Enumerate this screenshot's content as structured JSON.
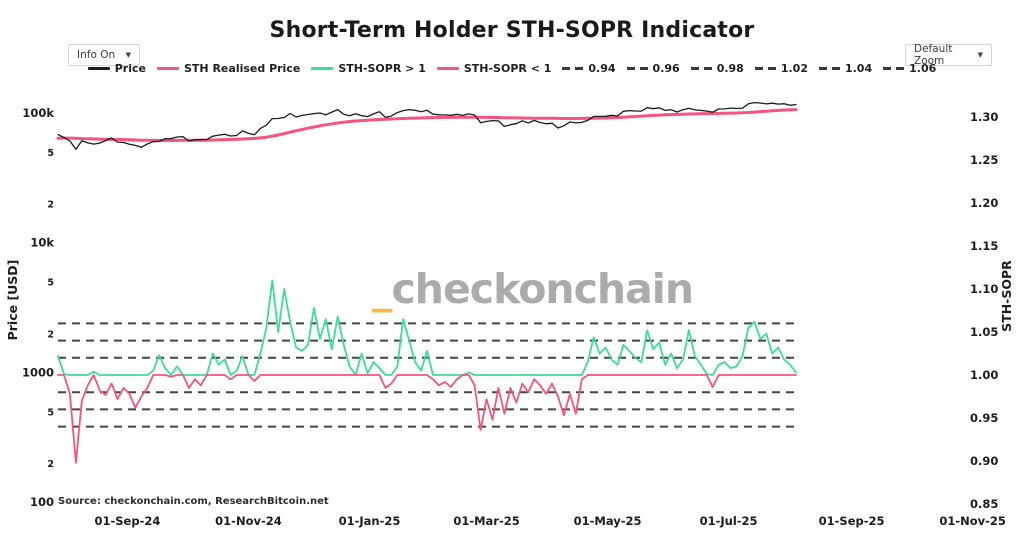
{
  "header": {
    "title": "Short-Term Holder STH-SOPR Indicator",
    "info_dropdown": {
      "label": "Info On",
      "caret": "▼"
    },
    "zoom_dropdown": {
      "label": "Default Zoom",
      "caret": "▼"
    }
  },
  "legend": {
    "items": [
      {
        "label": "Price",
        "type": "line",
        "color": "#1c1c1c"
      },
      {
        "label": "STH Realised Price",
        "type": "line",
        "color": "#f4547e"
      },
      {
        "label": "STH-SOPR > 1",
        "type": "line",
        "color": "#3ddc97"
      },
      {
        "label": "STH-SOPR < 1",
        "type": "line",
        "color": "#f4547e"
      },
      {
        "label": "0.94",
        "type": "dash",
        "color": "#3a3a3a"
      },
      {
        "label": "0.96",
        "type": "dash",
        "color": "#3a3a3a"
      },
      {
        "label": "0.98",
        "type": "dash",
        "color": "#3a3a3a"
      },
      {
        "label": "1.02",
        "type": "dash",
        "color": "#3a3a3a"
      },
      {
        "label": "1.04",
        "type": "dash",
        "color": "#3a3a3a"
      },
      {
        "label": "1.06",
        "type": "dash",
        "color": "#3a3a3a"
      }
    ]
  },
  "axes": {
    "y_left": {
      "title": "Price [USD]",
      "ticks": [
        {
          "v": 100000,
          "label": "100k",
          "minor": false
        },
        {
          "v": 50000,
          "label": "5",
          "minor": true
        },
        {
          "v": 20000,
          "label": "2",
          "minor": true
        },
        {
          "v": 10000,
          "label": "10k",
          "minor": false
        },
        {
          "v": 5000,
          "label": "5",
          "minor": true
        },
        {
          "v": 2000,
          "label": "2",
          "minor": true
        },
        {
          "v": 1000,
          "label": "1000",
          "minor": false
        },
        {
          "v": 500,
          "label": "5",
          "minor": true
        },
        {
          "v": 200,
          "label": "2",
          "minor": true
        },
        {
          "v": 100,
          "label": "100",
          "minor": false
        }
      ]
    },
    "y_right": {
      "title": "STH-SOPR",
      "ticks": [
        {
          "v": 1.3,
          "label": "1.30"
        },
        {
          "v": 1.25,
          "label": "1.25"
        },
        {
          "v": 1.2,
          "label": "1.20"
        },
        {
          "v": 1.15,
          "label": "1.15"
        },
        {
          "v": 1.1,
          "label": "1.10"
        },
        {
          "v": 1.05,
          "label": "1.05"
        },
        {
          "v": 1.0,
          "label": "1.00"
        },
        {
          "v": 0.95,
          "label": "0.95"
        },
        {
          "v": 0.9,
          "label": "0.90"
        },
        {
          "v": 0.85,
          "label": "0.85"
        }
      ]
    },
    "x": {
      "ticks": [
        "01-Sep-24",
        "01-Nov-24",
        "01-Jan-25",
        "01-Mar-25",
        "01-May-25",
        "01-Jul-25",
        "01-Sep-25",
        "01-Nov-25"
      ]
    }
  },
  "watermark": {
    "underscore": "_",
    "text": "checkonchain",
    "underscore_color": "#fcb949",
    "text_color": "#ababab"
  },
  "source": "Source: checkonchain.com, ResearchBitcoin.net",
  "chart_data": {
    "type": "line",
    "title": "Short-Term Holder STH-SOPR Indicator",
    "start_date": "2024-07-28",
    "step_days": 3,
    "y_left": {
      "label": "Price [USD]",
      "scale": "log",
      "range": [
        100,
        130000
      ]
    },
    "y_right": {
      "label": "STH-SOPR",
      "scale": "linear",
      "range": [
        0.85,
        1.3
      ]
    },
    "x_range": [
      "2024-07-28",
      "2025-11-01"
    ],
    "sopr_gridlines": [
      0.94,
      0.96,
      0.98,
      1.02,
      1.04,
      1.06
    ],
    "grid_color": "#454545",
    "series": [
      {
        "name": "Price",
        "axis": "left",
        "color": "#1c1c1c",
        "values_usd": [
          68000,
          64600,
          60700,
          52500,
          60900,
          58700,
          57500,
          58500,
          61200,
          64000,
          59500,
          59100,
          57400,
          56200,
          54300,
          57600,
          60000,
          60300,
          63200,
          63400,
          65200,
          65600,
          60600,
          62100,
          62200,
          62500,
          66100,
          67400,
          68400,
          66400,
          67000,
          72700,
          69500,
          67800,
          75900,
          80400,
          90400,
          90600,
          92300,
          98900,
          93000,
          95600,
          97200,
          98800,
          99900,
          96600,
          101400,
          106100,
          97500,
          95200,
          98600,
          95200,
          93600,
          98200,
          102100,
          92500,
          94500,
          100500,
          104100,
          106100,
          104800,
          102100,
          104700,
          97700,
          96600,
          96500,
          95800,
          97500,
          95700,
          98300,
          96300,
          84100,
          86000,
          87200,
          86700,
          78600,
          81100,
          82600,
          86900,
          83800,
          87500,
          84400,
          82500,
          83200,
          76500,
          79600,
          85200,
          83700,
          84500,
          87500,
          93900,
          94000,
          94200,
          95900,
          94700,
          102900,
          104100,
          103500,
          103200,
          109700,
          107800,
          109400,
          104600,
          105900,
          101600,
          105800,
          108700,
          105500,
          104600,
          103300,
          101200,
          107100,
          107300,
          108900,
          108100,
          108900,
          117500,
          120100,
          119300,
          117300,
          118800,
          117000,
          117800,
          114500,
          116000
        ]
      },
      {
        "name": "STH Realised Price",
        "axis": "left",
        "color": "#f4547e",
        "values_usd": [
          63800,
          63900,
          63900,
          63700,
          63400,
          63200,
          63000,
          62800,
          62600,
          62500,
          62400,
          62200,
          62000,
          61800,
          61600,
          61500,
          61400,
          61300,
          61300,
          61300,
          61400,
          61500,
          61500,
          61500,
          61500,
          61600,
          61800,
          62000,
          62200,
          62400,
          62600,
          62900,
          63200,
          63600,
          64200,
          65000,
          66200,
          67600,
          69200,
          71000,
          72800,
          74500,
          76200,
          77800,
          79400,
          80900,
          82300,
          83600,
          84800,
          85800,
          86600,
          87300,
          87900,
          88400,
          88900,
          89300,
          89700,
          90100,
          90500,
          90900,
          91200,
          91500,
          91800,
          92000,
          92200,
          92300,
          92400,
          92500,
          92500,
          92600,
          92600,
          92500,
          92400,
          92200,
          92100,
          91900,
          91700,
          91500,
          91400,
          91200,
          91100,
          91000,
          90900,
          90800,
          90700,
          90600,
          90600,
          90600,
          90700,
          90800,
          91000,
          91200,
          91500,
          91800,
          92200,
          92700,
          93200,
          93800,
          94400,
          95000,
          95600,
          96100,
          96600,
          97000,
          97400,
          97700,
          98000,
          98300,
          98600,
          98800,
          99000,
          99200,
          99400,
          99600,
          99900,
          100300,
          100800,
          101500,
          102300,
          103100,
          103900,
          104600,
          105200,
          105700,
          106000
        ]
      },
      {
        "name": "STH-SOPR",
        "axis": "right",
        "color_above_1": "#3ddc97",
        "color_below_1": "#f4547e",
        "values": [
          1.022,
          1.001,
          0.978,
          0.898,
          0.97,
          0.988,
          1.004,
          0.982,
          0.977,
          0.99,
          0.972,
          0.985,
          0.978,
          0.962,
          0.975,
          0.985,
          1.005,
          1.023,
          1.008,
          0.998,
          1.01,
          1.0,
          0.985,
          0.995,
          0.988,
          1.0,
          1.025,
          1.012,
          1.018,
          0.995,
          1.005,
          1.022,
          1.0,
          0.993,
          1.025,
          1.055,
          1.11,
          1.05,
          1.1,
          1.062,
          1.032,
          1.028,
          1.035,
          1.078,
          1.042,
          1.065,
          1.03,
          1.068,
          1.035,
          1.01,
          1.0,
          1.025,
          1.002,
          1.015,
          1.008,
          0.985,
          0.99,
          1.01,
          1.065,
          1.04,
          1.015,
          1.005,
          1.028,
          0.995,
          0.988,
          0.992,
          0.986,
          0.995,
          1.0,
          1.003,
          0.988,
          0.936,
          0.972,
          0.948,
          0.985,
          0.955,
          0.985,
          0.968,
          0.99,
          0.98,
          0.995,
          0.988,
          0.978,
          0.99,
          0.975,
          0.953,
          0.978,
          0.955,
          0.995,
          1.015,
          1.044,
          1.025,
          1.032,
          1.018,
          1.012,
          1.035,
          1.028,
          1.02,
          1.015,
          1.052,
          1.03,
          1.038,
          1.012,
          1.025,
          1.008,
          1.018,
          1.052,
          1.022,
          1.012,
          1.001,
          0.986,
          1.012,
          1.015,
          1.008,
          1.01,
          1.022,
          1.055,
          1.062,
          1.042,
          1.048,
          1.025,
          1.032,
          1.018,
          1.012,
          1.003
        ]
      }
    ]
  }
}
